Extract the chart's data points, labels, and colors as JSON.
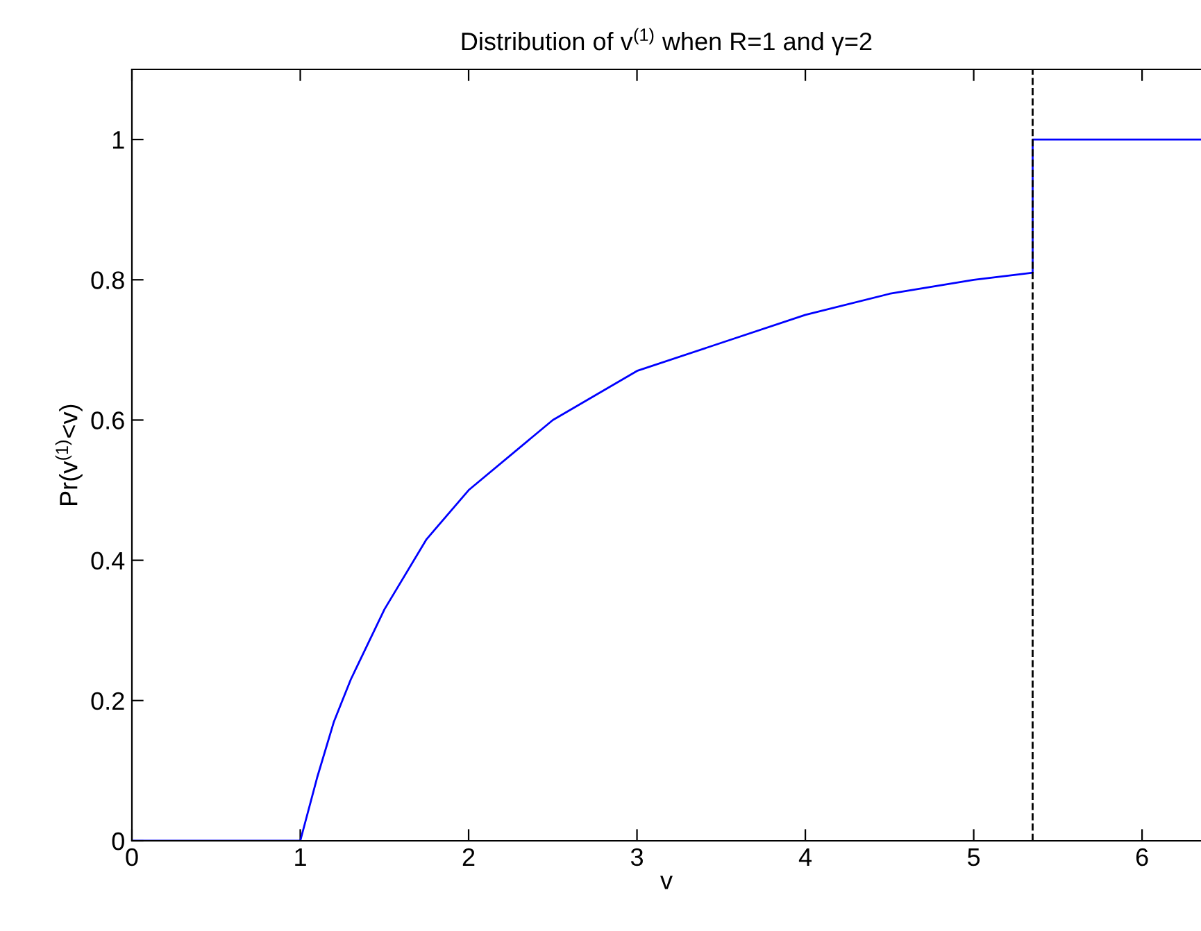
{
  "chart_data": {
    "type": "line",
    "title": "Distribution of v$^{(1)}$ when R=1 and γ=2",
    "xlabel": "v",
    "ylabel": "Pr(v$^{(1)}$<v)",
    "x": [
      0,
      1,
      1.1,
      1.2,
      1.3,
      1.5,
      1.75,
      2,
      2.5,
      3,
      3.5,
      4,
      4.5,
      5,
      5.35,
      5.35,
      6.35
    ],
    "series": [
      {
        "color": "#0000ff",
        "values": [
          0,
          0,
          0.09,
          0.17,
          0.23,
          0.33,
          0.43,
          0.5,
          0.6,
          0.67,
          0.71,
          0.75,
          0.78,
          0.8,
          0.81,
          1,
          1
        ]
      }
    ],
    "xlim": [
      0,
      6.35
    ],
    "ylim": [
      0,
      1.1
    ],
    "xticks": [
      0,
      1,
      2,
      3,
      4,
      5,
      6
    ],
    "yticks": [
      0,
      0.2,
      0.4,
      0.6,
      0.8,
      1
    ],
    "ref_lines": [
      {
        "axis": "x",
        "value": 5.35,
        "color": "#000000",
        "line_style": "dashed"
      }
    ],
    "grid": false,
    "legend": false,
    "marker": "none",
    "line_style": "solid"
  }
}
